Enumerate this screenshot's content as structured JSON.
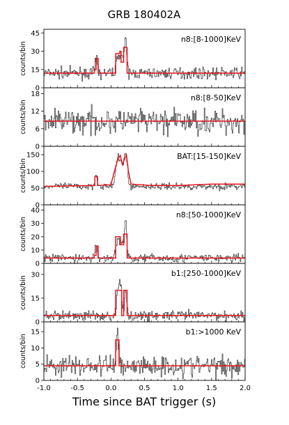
{
  "figure": {
    "title": "GRB 180402A",
    "xlabel": "Time since BAT trigger (s)",
    "x_tick_labels": [
      "-1.0",
      "-0.5",
      "0.0",
      "0.5",
      "1.0",
      "1.5",
      "2.0"
    ]
  },
  "colors": {
    "data": "#333333",
    "fit": "#e8141c",
    "axis": "#000000",
    "background": "#ffffff"
  },
  "chart_data": [
    {
      "type": "line",
      "panel_label": "n8:[8-1000]KeV",
      "ylabel": "counts/bin",
      "xlim": [
        -1.0,
        2.0
      ],
      "ylim": [
        0,
        48
      ],
      "yticks": [
        0,
        15,
        30,
        45
      ],
      "grid": false,
      "series": [
        {
          "kind": "noisy-light-curve",
          "baseline": 12,
          "noise": 3.2,
          "pulses": [
            [
              -0.22,
              0.015,
              12
            ],
            [
              0.12,
              0.035,
              15
            ],
            [
              0.18,
              0.03,
              8
            ],
            [
              0.22,
              0.018,
              22
            ]
          ]
        },
        {
          "kind": "fit",
          "points": [
            [
              -1.0,
              12
            ],
            [
              -0.25,
              12
            ],
            [
              -0.25,
              15
            ],
            [
              -0.22,
              15
            ],
            [
              -0.22,
              24
            ],
            [
              -0.19,
              24
            ],
            [
              -0.19,
              12
            ],
            [
              0.07,
              12
            ],
            [
              0.07,
              28
            ],
            [
              0.13,
              28
            ],
            [
              0.13,
              30
            ],
            [
              0.15,
              30
            ],
            [
              0.15,
              21
            ],
            [
              0.19,
              21
            ],
            [
              0.19,
              33
            ],
            [
              0.24,
              33
            ],
            [
              0.24,
              12
            ],
            [
              2.0,
              12
            ]
          ]
        }
      ]
    },
    {
      "type": "line",
      "panel_label": "n8:[8-50]KeV",
      "ylabel": "counts/bin",
      "xlim": [
        -1.0,
        2.0
      ],
      "ylim": [
        0,
        20
      ],
      "yticks": [
        0,
        6,
        12,
        18
      ],
      "grid": false,
      "series": [
        {
          "kind": "noisy-light-curve",
          "baseline": 8.5,
          "noise": 3.0,
          "pulses": []
        },
        {
          "kind": "fit",
          "points": [
            [
              -1.0,
              8.6
            ],
            [
              2.0,
              8.6
            ]
          ]
        }
      ]
    },
    {
      "type": "line",
      "panel_label": "BAT:[15-150]KeV",
      "ylabel": "counts/bin",
      "xlim": [
        -1.0,
        2.0
      ],
      "ylim": [
        0,
        175
      ],
      "yticks": [
        0,
        50,
        100,
        150
      ],
      "grid": false,
      "series": [
        {
          "kind": "noisy-light-curve",
          "baseline": 55,
          "noise": 7,
          "pulses": [
            [
              -0.22,
              0.02,
              35
            ],
            [
              0.1,
              0.03,
              80
            ],
            [
              0.16,
              0.025,
              60
            ],
            [
              0.22,
              0.025,
              95
            ]
          ]
        },
        {
          "kind": "fit",
          "points": [
            [
              -1.0,
              55
            ],
            [
              -0.5,
              57
            ],
            [
              -0.24,
              58
            ],
            [
              -0.24,
              85
            ],
            [
              -0.2,
              85
            ],
            [
              -0.2,
              58
            ],
            [
              0.0,
              60
            ],
            [
              0.05,
              100
            ],
            [
              0.1,
              135
            ],
            [
              0.14,
              148
            ],
            [
              0.17,
              120
            ],
            [
              0.19,
              130
            ],
            [
              0.23,
              150
            ],
            [
              0.26,
              100
            ],
            [
              0.3,
              62
            ],
            [
              0.6,
              58
            ],
            [
              1.0,
              58
            ],
            [
              1.5,
              62
            ],
            [
              2.0,
              62
            ]
          ]
        }
      ]
    },
    {
      "type": "line",
      "panel_label": "n8:[50-1000]KeV",
      "ylabel": "counts/bin",
      "xlim": [
        -1.0,
        2.0
      ],
      "ylim": [
        0,
        44
      ],
      "yticks": [
        0,
        10,
        20,
        30,
        40
      ],
      "grid": false,
      "series": [
        {
          "kind": "noisy-light-curve",
          "baseline": 4,
          "noise": 2.2,
          "pulses": [
            [
              -0.22,
              0.015,
              10
            ],
            [
              0.11,
              0.03,
              15
            ],
            [
              0.17,
              0.02,
              10
            ],
            [
              0.22,
              0.015,
              30
            ]
          ]
        },
        {
          "kind": "fit",
          "points": [
            [
              -1.0,
              4
            ],
            [
              -0.25,
              4
            ],
            [
              -0.25,
              6
            ],
            [
              -0.22,
              6
            ],
            [
              -0.22,
              13
            ],
            [
              -0.19,
              13
            ],
            [
              -0.19,
              4
            ],
            [
              0.07,
              4
            ],
            [
              0.07,
              20
            ],
            [
              0.14,
              20
            ],
            [
              0.14,
              14
            ],
            [
              0.19,
              14
            ],
            [
              0.19,
              22
            ],
            [
              0.24,
              22
            ],
            [
              0.24,
              4
            ],
            [
              2.0,
              4
            ]
          ]
        }
      ]
    },
    {
      "type": "line",
      "panel_label": "b1:[250-1000]KeV",
      "ylabel": "counts/bin",
      "xlim": [
        -1.0,
        2.0
      ],
      "ylim": [
        0,
        37
      ],
      "yticks": [
        0,
        15,
        30
      ],
      "grid": false,
      "series": [
        {
          "kind": "noisy-light-curve",
          "baseline": 4,
          "noise": 2.2,
          "pulses": [
            [
              0.1,
              0.02,
              12
            ],
            [
              0.14,
              0.02,
              20
            ],
            [
              0.22,
              0.015,
              16
            ]
          ]
        },
        {
          "kind": "fit",
          "points": [
            [
              -1.0,
              4
            ],
            [
              0.07,
              4
            ],
            [
              0.07,
              20
            ],
            [
              0.16,
              20
            ],
            [
              0.16,
              4
            ],
            [
              0.19,
              4
            ],
            [
              0.19,
              20
            ],
            [
              0.24,
              20
            ],
            [
              0.24,
              4
            ],
            [
              2.0,
              4
            ]
          ]
        }
      ]
    },
    {
      "type": "line",
      "panel_label": "b1:>1000 KeV",
      "ylabel": "counts/bin",
      "xlim": [
        -1.0,
        2.0
      ],
      "ylim": [
        0,
        18
      ],
      "yticks": [
        0,
        5,
        10,
        15
      ],
      "grid": false,
      "series": [
        {
          "kind": "noisy-light-curve",
          "baseline": 4.5,
          "noise": 2.4,
          "pulses": [
            [
              0.1,
              0.02,
              9
            ]
          ]
        },
        {
          "kind": "fit",
          "points": [
            [
              -1.0,
              4.5
            ],
            [
              0.07,
              4.5
            ],
            [
              0.07,
              12.5
            ],
            [
              0.12,
              12.5
            ],
            [
              0.12,
              4.5
            ],
            [
              2.0,
              4.5
            ]
          ]
        }
      ]
    }
  ]
}
